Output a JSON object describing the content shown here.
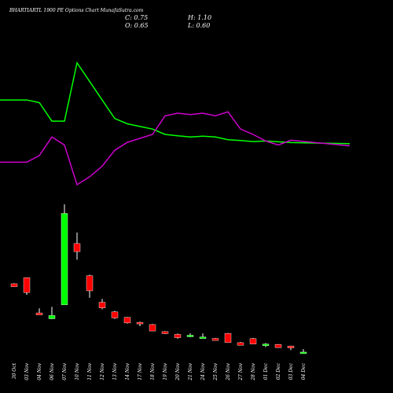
{
  "chart_data": {
    "type": "candlestick",
    "title": "BHARTIARTL 1900 PE Options Chart MunafaSutra.com",
    "ohlc_summary": {
      "c_label": "C: 0.75",
      "h_label": "H: 1.10",
      "o_label": "O: 0.65",
      "l_label": "L: 0.60"
    },
    "categories": [
      "30 Oct",
      "03 Nov",
      "04 Nov",
      "06 Nov",
      "07 Nov",
      "10 Nov",
      "11 Nov",
      "12 Nov",
      "13 Nov",
      "14 Nov",
      "17 Nov",
      "18 Nov",
      "19 Nov",
      "20 Nov",
      "21 Nov",
      "24 Nov",
      "25 Nov",
      "26 Nov",
      "27 Nov",
      "28 Nov",
      "01 Dec",
      "02 Dec",
      "03 Dec",
      "04 Dec"
    ],
    "candles": [
      {
        "open": 25.0,
        "high": 25.3,
        "low": 23.5,
        "close": 23.5
      },
      {
        "open": 28.0,
        "high": 28.2,
        "low": 19.5,
        "close": 20.6
      },
      {
        "open": 10.5,
        "high": 12.8,
        "low": 9.5,
        "close": 9.5
      },
      {
        "open": 7.6,
        "high": 13.5,
        "low": 7.4,
        "close": 9.2
      },
      {
        "open": 14.5,
        "high": 64.5,
        "low": 14.5,
        "close": 60.0
      },
      {
        "open": 45.0,
        "high": 50.5,
        "low": 37.0,
        "close": 41.0
      },
      {
        "open": 29.0,
        "high": 29.5,
        "low": 18.0,
        "close": 21.5
      },
      {
        "open": 15.8,
        "high": 17.5,
        "low": 12.3,
        "close": 13.0
      },
      {
        "open": 11.0,
        "high": 11.5,
        "low": 7.5,
        "close": 8.0
      },
      {
        "open": 8.3,
        "high": 8.5,
        "low": 5.2,
        "close": 5.5
      },
      {
        "open": 5.8,
        "high": 6.2,
        "low": 3.9,
        "close": 5.5
      },
      {
        "open": 4.7,
        "high": 5.0,
        "low": 1.5,
        "close": 1.5
      },
      {
        "open": 1.2,
        "high": 1.4,
        "low": 0.0,
        "close": 0.2
      },
      {
        "open": -0.2,
        "high": 0.2,
        "low": -2.3,
        "close": -1.8
      },
      {
        "open": -0.8,
        "high": 0.3,
        "low": -1.6,
        "close": -0.6
      },
      {
        "open": -1.6,
        "high": 0.3,
        "low": -1.8,
        "close": -1.5
      },
      {
        "open": -2.2,
        "high": -2.0,
        "low": -3.2,
        "close": -3.2
      },
      {
        "open": 0.3,
        "high": 0.5,
        "low": -4.2,
        "close": -4.2
      },
      {
        "open": -4.3,
        "high": -4.0,
        "low": -5.6,
        "close": -5.6
      },
      {
        "open": -2.3,
        "high": -2.0,
        "low": -5.0,
        "close": -5.0
      },
      {
        "open": -5.4,
        "high": -4.5,
        "low": -6.5,
        "close": -5.0
      },
      {
        "open": -5.2,
        "high": -5.0,
        "low": -6.8,
        "close": -6.8
      },
      {
        "open": -6.0,
        "high": -5.8,
        "low": -8.0,
        "close": -6.9
      },
      {
        "open": -9.6,
        "high": -7.5,
        "low": -9.8,
        "close": -9.0
      }
    ],
    "series": [
      {
        "color": "#00ff00",
        "values": [
          86,
          86,
          85,
          78,
          78,
          100,
          93,
          86,
          79,
          77,
          76,
          75,
          73,
          72.5,
          72,
          72.3,
          72,
          71,
          70.7,
          70.3,
          70.5,
          70.2,
          69.9,
          69.5
        ]
      },
      {
        "color": "#cc00cc",
        "values": [
          62.5,
          62.5,
          65,
          72,
          69,
          54,
          57,
          61,
          67,
          70,
          71.5,
          73,
          80,
          81,
          80.5,
          81,
          80,
          81.5,
          75,
          73,
          70.5,
          69,
          70.8,
          68.7
        ]
      }
    ],
    "up_color": "#00ff00",
    "down_color": "#ff0000"
  }
}
